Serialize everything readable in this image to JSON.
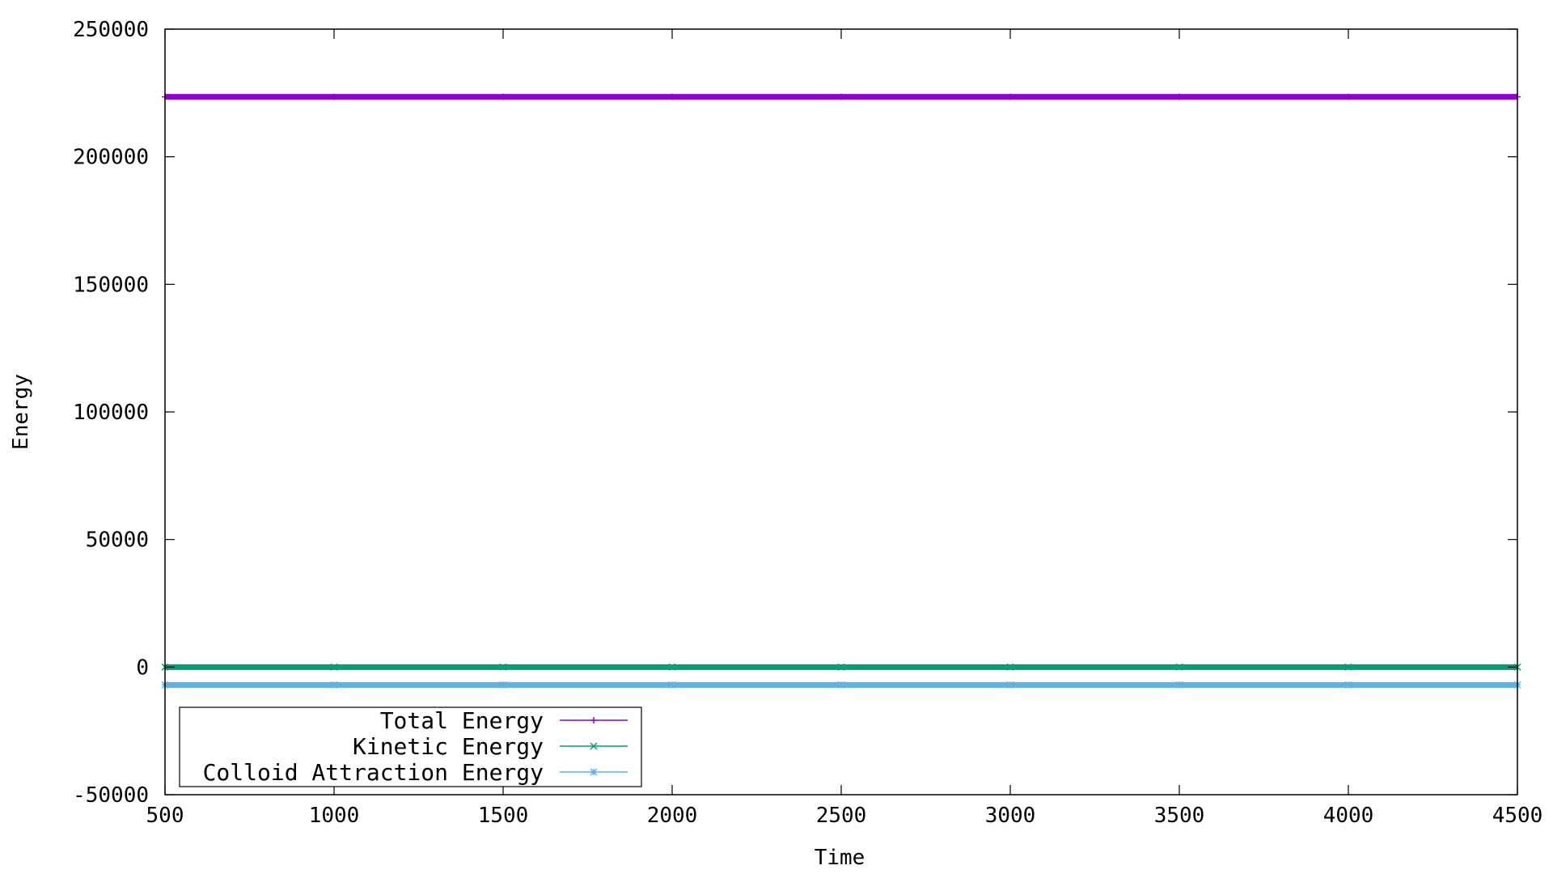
{
  "chart_data": {
    "type": "line",
    "xlabel": "Time",
    "ylabel": "Energy",
    "xlim": [
      500,
      4500
    ],
    "ylim": [
      -50000,
      250000
    ],
    "xticks": [
      "500",
      "1000",
      "1500",
      "2000",
      "2500",
      "3000",
      "3500",
      "4000",
      "4500"
    ],
    "yticks": [
      "-50000",
      "0",
      "50000",
      "100000",
      "150000",
      "200000",
      "250000"
    ],
    "grid": false,
    "legend_position": "bottom-left",
    "series": [
      {
        "name": "Total Energy",
        "color": "#9400d3",
        "marker": "plus",
        "x": [
          500,
          1000,
          1500,
          2000,
          2500,
          3000,
          3500,
          4000,
          4500
        ],
        "values": [
          223500,
          223500,
          223500,
          223500,
          223500,
          223500,
          223500,
          223500,
          223500
        ]
      },
      {
        "name": "Kinetic Energy",
        "color": "#009e73",
        "marker": "cross",
        "x": [
          500,
          1000,
          1500,
          2000,
          2500,
          3000,
          3500,
          4000,
          4500
        ],
        "values": [
          0,
          0,
          0,
          0,
          0,
          0,
          0,
          0,
          0
        ]
      },
      {
        "name": "Colloid Attraction Energy",
        "color": "#56b4e9",
        "marker": "star",
        "x": [
          500,
          1000,
          1500,
          2000,
          2500,
          3000,
          3500,
          4000,
          4500
        ],
        "values": [
          -7000,
          -7000,
          -7000,
          -7000,
          -7000,
          -7000,
          -7000,
          -7000,
          -7000
        ]
      }
    ]
  }
}
